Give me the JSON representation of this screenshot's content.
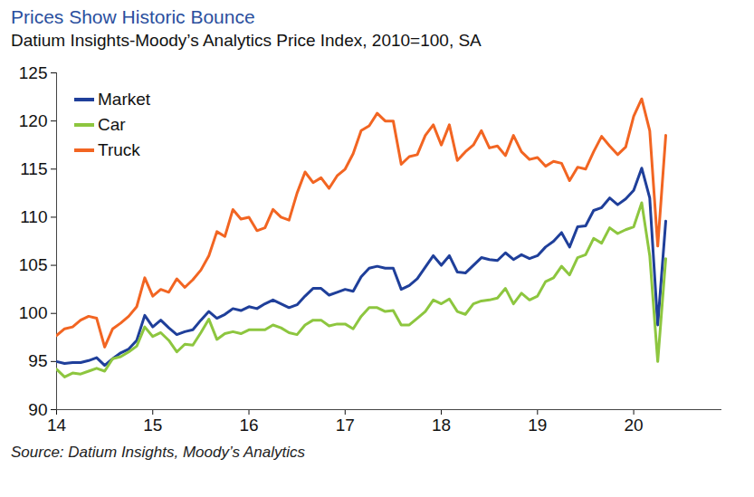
{
  "chart_data": {
    "type": "line",
    "title": "Prices Show Historic Bounce",
    "subtitle": "Datium Insights-Moody’s Analytics Price Index, 2010=100, SA",
    "caption": "Source: Datium Insights, Moody’s Analytics",
    "categories": [
      "14",
      null,
      null,
      null,
      null,
      null,
      null,
      null,
      null,
      null,
      null,
      null,
      "15",
      null,
      null,
      null,
      null,
      null,
      null,
      null,
      null,
      null,
      null,
      null,
      "16",
      null,
      null,
      null,
      null,
      null,
      null,
      null,
      null,
      null,
      null,
      null,
      "17",
      null,
      null,
      null,
      null,
      null,
      null,
      null,
      null,
      null,
      null,
      null,
      "18",
      null,
      null,
      null,
      null,
      null,
      null,
      null,
      null,
      null,
      null,
      null,
      "19",
      null,
      null,
      null,
      null,
      null,
      null,
      null,
      null,
      null,
      null,
      null,
      "20",
      null,
      null,
      null,
      null,
      null,
      null,
      null,
      null,
      null,
      null,
      null
    ],
    "series": [
      {
        "name": "Market",
        "color": "#1f3f9a",
        "values": [
          95.0,
          94.8,
          94.9,
          94.9,
          95.1,
          95.4,
          94.6,
          95.3,
          95.9,
          96.3,
          97.2,
          99.8,
          98.6,
          99.3,
          98.5,
          97.8,
          98.1,
          98.3,
          99.3,
          100.2,
          99.5,
          99.9,
          100.5,
          100.3,
          100.7,
          100.5,
          101.0,
          101.4,
          101.0,
          100.6,
          100.9,
          101.8,
          102.6,
          102.6,
          101.9,
          102.2,
          102.5,
          102.3,
          103.8,
          104.7,
          104.9,
          104.7,
          104.7,
          102.5,
          102.9,
          103.6,
          104.8,
          106.0,
          105.0,
          106.0,
          104.3,
          104.2,
          105.0,
          105.8,
          105.6,
          105.5,
          106.3,
          105.6,
          106.1,
          105.7,
          106.0,
          106.9,
          107.5,
          108.4,
          106.9,
          109.0,
          109.1,
          110.7,
          111.0,
          112.0,
          111.3,
          111.9,
          112.8,
          115.1,
          112.0,
          98.8,
          109.6,
          null,
          null,
          null,
          null,
          null,
          null,
          null
        ]
      },
      {
        "name": "Car",
        "color": "#8dc63f",
        "values": [
          94.2,
          93.4,
          93.8,
          93.7,
          94.0,
          94.3,
          94.0,
          95.3,
          95.5,
          96.0,
          96.6,
          98.6,
          97.6,
          98.0,
          97.2,
          96.0,
          96.8,
          96.7,
          98.0,
          99.4,
          97.3,
          97.9,
          98.1,
          97.9,
          98.3,
          98.3,
          98.3,
          98.8,
          98.5,
          98.0,
          97.8,
          98.8,
          99.3,
          99.3,
          98.7,
          98.9,
          98.9,
          98.4,
          99.7,
          100.6,
          100.6,
          100.2,
          100.3,
          98.8,
          98.8,
          99.5,
          100.2,
          101.4,
          101.0,
          101.5,
          100.2,
          99.9,
          101.0,
          101.3,
          101.4,
          101.6,
          102.6,
          101.0,
          102.1,
          101.4,
          101.8,
          103.3,
          103.7,
          104.9,
          104.0,
          105.8,
          106.1,
          107.8,
          107.3,
          108.9,
          108.3,
          108.7,
          109.0,
          111.5,
          106.0,
          95.0,
          105.7,
          null,
          null,
          null,
          null,
          null,
          null,
          null
        ]
      },
      {
        "name": "Truck",
        "color": "#f26522",
        "values": [
          97.7,
          98.4,
          98.6,
          99.3,
          99.7,
          99.5,
          96.5,
          98.4,
          99.0,
          99.7,
          100.7,
          103.7,
          101.8,
          102.5,
          102.2,
          103.6,
          102.7,
          103.5,
          104.5,
          106.0,
          108.5,
          108.0,
          110.8,
          109.8,
          110.0,
          108.6,
          108.9,
          110.8,
          110.0,
          109.7,
          112.5,
          114.7,
          113.6,
          114.1,
          113.0,
          114.3,
          115.0,
          116.6,
          119.0,
          119.5,
          120.8,
          120.0,
          120.0,
          115.5,
          116.3,
          116.5,
          118.5,
          119.6,
          117.5,
          119.6,
          115.9,
          116.8,
          117.5,
          119.0,
          117.2,
          117.4,
          116.4,
          118.5,
          116.8,
          116.0,
          116.2,
          115.3,
          115.8,
          115.6,
          113.8,
          115.2,
          115.0,
          116.8,
          118.4,
          117.4,
          116.5,
          117.3,
          120.5,
          122.3,
          119.0,
          107.0,
          118.5,
          null,
          null,
          null,
          null,
          null,
          null,
          null
        ]
      }
    ],
    "ylim": [
      90,
      125
    ],
    "yticks": [
      90,
      95,
      100,
      105,
      110,
      115,
      120,
      125
    ],
    "grid": false,
    "legend": "top-left"
  }
}
